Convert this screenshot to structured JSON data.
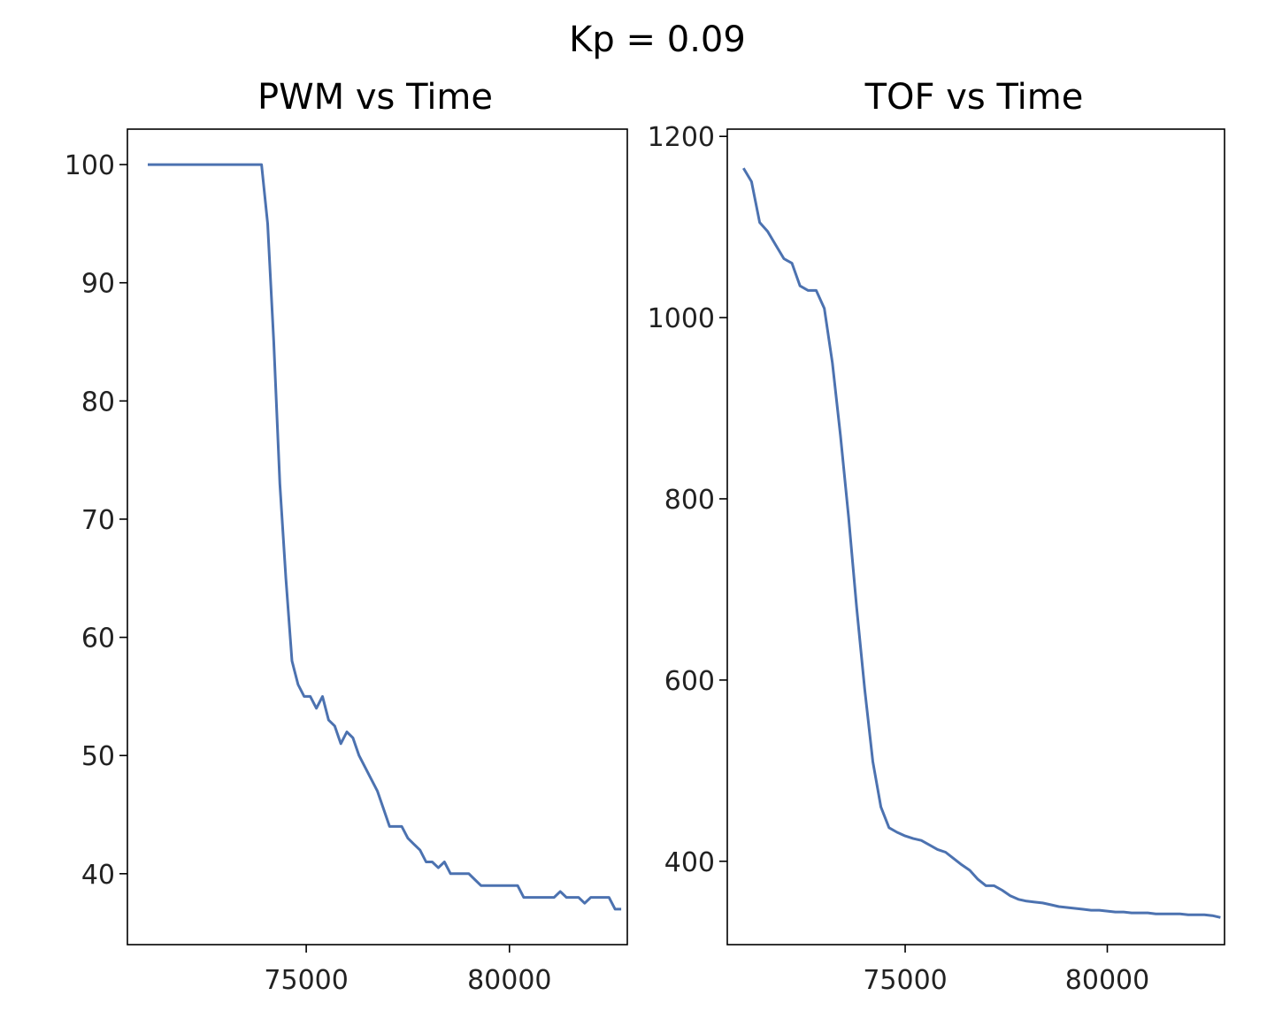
{
  "figure": {
    "title": "Kp = 0.09"
  },
  "colors": {
    "line": "#4c72b0",
    "axes": "#000000",
    "background": "#ffffff"
  },
  "chart_data": [
    {
      "type": "line",
      "title": "PWM vs Time",
      "xlabel": "",
      "ylabel": "",
      "xlim": [
        70600,
        82900
      ],
      "ylim": [
        34,
        103
      ],
      "xticks": [
        75000,
        80000
      ],
      "yticks": [
        40,
        50,
        60,
        70,
        80,
        90,
        100
      ],
      "grid": false,
      "series": [
        {
          "x": [
            71100,
            71600,
            72200,
            72800,
            73400,
            73900,
            74050,
            74200,
            74350,
            74500,
            74650,
            74800,
            74950,
            75100,
            75250,
            75400,
            75550,
            75700,
            75850,
            76000,
            76150,
            76300,
            76450,
            76600,
            76750,
            76900,
            77050,
            77200,
            77350,
            77500,
            77650,
            77800,
            77950,
            78100,
            78250,
            78400,
            78550,
            78700,
            78850,
            79000,
            79150,
            79300,
            79450,
            79600,
            79750,
            79900,
            80050,
            80200,
            80350,
            80500,
            80650,
            80800,
            80950,
            81100,
            81250,
            81400,
            81550,
            81700,
            81850,
            82000,
            82150,
            82300,
            82450,
            82600,
            82750
          ],
          "y": [
            100,
            100,
            100,
            100,
            100,
            100,
            95,
            85,
            73,
            65,
            58,
            56,
            55,
            55,
            54,
            55,
            53,
            52.5,
            51,
            52,
            51.5,
            50,
            49,
            48,
            47,
            45.5,
            44,
            44,
            44,
            43,
            42.5,
            42,
            41,
            41,
            40.5,
            41,
            40,
            40,
            40,
            40,
            39.5,
            39,
            39,
            39,
            39,
            39,
            39,
            39,
            38,
            38,
            38,
            38,
            38,
            38,
            38.5,
            38,
            38,
            38,
            37.5,
            38,
            38,
            38,
            38,
            37,
            37
          ]
        }
      ]
    },
    {
      "type": "line",
      "title": "TOF vs Time",
      "xlabel": "",
      "ylabel": "",
      "xlim": [
        70600,
        82900
      ],
      "ylim": [
        308,
        1208
      ],
      "xticks": [
        75000,
        80000
      ],
      "yticks": [
        400,
        600,
        800,
        1000,
        1200
      ],
      "grid": false,
      "series": [
        {
          "x": [
            71000,
            71200,
            71400,
            71600,
            71800,
            72000,
            72200,
            72400,
            72600,
            72800,
            73000,
            73200,
            73400,
            73600,
            73800,
            74000,
            74200,
            74400,
            74600,
            74800,
            75000,
            75200,
            75400,
            75600,
            75800,
            76000,
            76200,
            76400,
            76600,
            76800,
            77000,
            77200,
            77400,
            77600,
            77800,
            78000,
            78200,
            78400,
            78600,
            78800,
            79000,
            79200,
            79400,
            79600,
            79800,
            80000,
            80200,
            80400,
            80600,
            80800,
            81000,
            81200,
            81400,
            81600,
            81800,
            82000,
            82200,
            82400,
            82600,
            82800
          ],
          "y": [
            1165,
            1150,
            1105,
            1095,
            1080,
            1065,
            1060,
            1035,
            1030,
            1030,
            1010,
            950,
            870,
            780,
            680,
            590,
            510,
            460,
            437,
            432,
            428,
            425,
            423,
            418,
            413,
            410,
            403,
            396,
            390,
            380,
            373,
            373,
            368,
            362,
            358,
            356,
            355,
            354,
            352,
            350,
            349,
            348,
            347,
            346,
            346,
            345,
            344,
            344,
            343,
            343,
            343,
            342,
            342,
            342,
            342,
            341,
            341,
            341,
            340,
            338
          ]
        }
      ]
    }
  ]
}
